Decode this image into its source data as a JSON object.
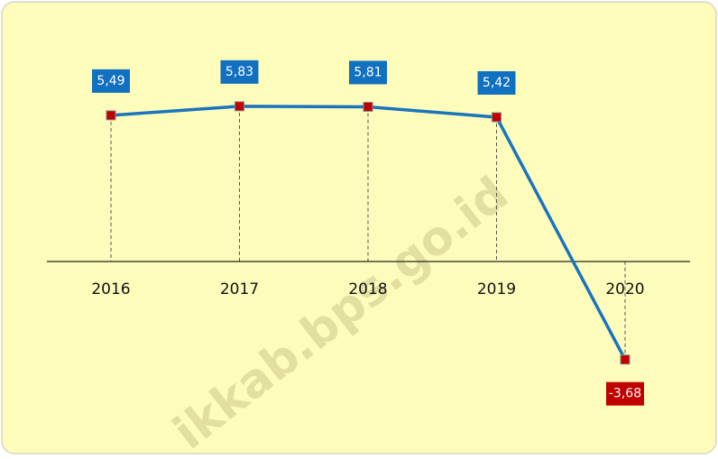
{
  "chart_data": {
    "type": "line",
    "categories": [
      "2016",
      "2017",
      "2018",
      "2019",
      "2020"
    ],
    "values": [
      5.49,
      5.83,
      5.81,
      5.42,
      -3.68
    ],
    "value_labels": [
      "5,49",
      "5,83",
      "5,81",
      "5,42",
      "-3,68"
    ],
    "color": "#1a74bd",
    "marker_color": "#c00000",
    "positive_label_color": "#1170c0",
    "negative_label_color": "#c00000",
    "ylim": [
      -6.5,
      8.5
    ],
    "watermark": "ikkab.bps.go.id"
  }
}
